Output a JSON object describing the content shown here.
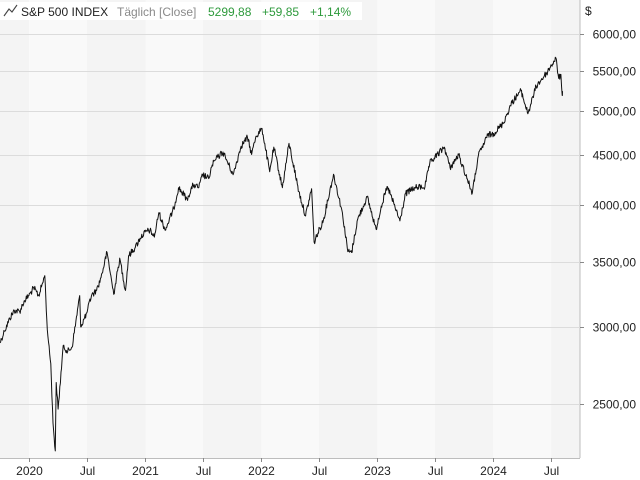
{
  "header": {
    "instrument": "S&P 500 INDEX",
    "period": "Täglich [Close]",
    "last": "5299,88",
    "change": "+59,85",
    "change_pct": "+1,14%"
  },
  "colors": {
    "plot_band_a": "#f4f4f4",
    "plot_band_b": "#f9f9f9",
    "grid": "#dcdcdc",
    "line": "#111111",
    "positive": "#2e9a3c",
    "muted": "#8a8a8a"
  },
  "chart_data": {
    "type": "line",
    "title": "S&P 500 INDEX",
    "xlabel": "",
    "ylabel": "$",
    "y_scale": "log",
    "ylim": [
      2200,
      6500
    ],
    "xlim": [
      "2019-10-01",
      "2024-09-30"
    ],
    "grid": true,
    "legend": "none",
    "y_ticks": [
      {
        "value": 2500,
        "label": "2500,00"
      },
      {
        "value": 3000,
        "label": "3000,00"
      },
      {
        "value": 3500,
        "label": "3500,00"
      },
      {
        "value": 4000,
        "label": "4000,00"
      },
      {
        "value": 4500,
        "label": "4500,00"
      },
      {
        "value": 5000,
        "label": "5000,00"
      },
      {
        "value": 5500,
        "label": "5500,00"
      },
      {
        "value": 6000,
        "label": "6000,00"
      }
    ],
    "x_ticks": [
      {
        "date": "2020-01-01",
        "label": "2020"
      },
      {
        "date": "2020-07-01",
        "label": "Jul"
      },
      {
        "date": "2021-01-01",
        "label": "2021"
      },
      {
        "date": "2021-07-01",
        "label": "Jul"
      },
      {
        "date": "2022-01-01",
        "label": "2022"
      },
      {
        "date": "2022-07-01",
        "label": "Jul"
      },
      {
        "date": "2023-01-01",
        "label": "2023"
      },
      {
        "date": "2023-07-01",
        "label": "Jul"
      },
      {
        "date": "2024-01-01",
        "label": "2024"
      },
      {
        "date": "2024-07-01",
        "label": "Jul"
      }
    ],
    "series": [
      {
        "points": [
          [
            "2019-10-01",
            2890
          ],
          [
            "2019-10-15",
            2970
          ],
          [
            "2019-11-01",
            3060
          ],
          [
            "2019-11-15",
            3120
          ],
          [
            "2019-12-02",
            3110
          ],
          [
            "2019-12-16",
            3190
          ],
          [
            "2019-12-31",
            3230
          ],
          [
            "2020-01-15",
            3290
          ],
          [
            "2020-01-31",
            3230
          ],
          [
            "2020-02-19",
            3386
          ],
          [
            "2020-02-27",
            2980
          ],
          [
            "2020-03-09",
            2750
          ],
          [
            "2020-03-16",
            2390
          ],
          [
            "2020-03-23",
            2237
          ],
          [
            "2020-03-26",
            2630
          ],
          [
            "2020-04-01",
            2470
          ],
          [
            "2020-04-17",
            2870
          ],
          [
            "2020-05-01",
            2830
          ],
          [
            "2020-05-15",
            2860
          ],
          [
            "2020-06-08",
            3230
          ],
          [
            "2020-06-11",
            3000
          ],
          [
            "2020-06-30",
            3100
          ],
          [
            "2020-07-15",
            3230
          ],
          [
            "2020-07-31",
            3270
          ],
          [
            "2020-08-14",
            3370
          ],
          [
            "2020-09-02",
            3580
          ],
          [
            "2020-09-23",
            3240
          ],
          [
            "2020-10-12",
            3530
          ],
          [
            "2020-10-30",
            3270
          ],
          [
            "2020-11-09",
            3550
          ],
          [
            "2020-11-30",
            3620
          ],
          [
            "2020-12-15",
            3700
          ],
          [
            "2020-12-31",
            3756
          ],
          [
            "2021-01-15",
            3770
          ],
          [
            "2021-01-29",
            3710
          ],
          [
            "2021-02-12",
            3930
          ],
          [
            "2021-03-04",
            3770
          ],
          [
            "2021-03-31",
            3970
          ],
          [
            "2021-04-15",
            4170
          ],
          [
            "2021-05-12",
            4060
          ],
          [
            "2021-05-31",
            4200
          ],
          [
            "2021-06-18",
            4170
          ],
          [
            "2021-06-30",
            4300
          ],
          [
            "2021-07-19",
            4260
          ],
          [
            "2021-07-30",
            4400
          ],
          [
            "2021-08-16",
            4480
          ],
          [
            "2021-09-02",
            4537
          ],
          [
            "2021-10-04",
            4300
          ],
          [
            "2021-10-29",
            4600
          ],
          [
            "2021-11-18",
            4700
          ],
          [
            "2021-12-01",
            4510
          ],
          [
            "2021-12-15",
            4710
          ],
          [
            "2022-01-03",
            4797
          ],
          [
            "2022-01-27",
            4330
          ],
          [
            "2022-02-09",
            4590
          ],
          [
            "2022-03-08",
            4170
          ],
          [
            "2022-03-29",
            4630
          ],
          [
            "2022-04-29",
            4130
          ],
          [
            "2022-05-20",
            3900
          ],
          [
            "2022-06-08",
            4160
          ],
          [
            "2022-06-16",
            3666
          ],
          [
            "2022-07-15",
            3860
          ],
          [
            "2022-08-16",
            4305
          ],
          [
            "2022-09-13",
            3930
          ],
          [
            "2022-09-30",
            3585
          ],
          [
            "2022-10-12",
            3577
          ],
          [
            "2022-10-31",
            3870
          ],
          [
            "2022-11-30",
            4080
          ],
          [
            "2022-12-28",
            3780
          ],
          [
            "2023-01-13",
            3990
          ],
          [
            "2023-02-02",
            4180
          ],
          [
            "2023-03-13",
            3855
          ],
          [
            "2023-03-31",
            4110
          ],
          [
            "2023-04-28",
            4170
          ],
          [
            "2023-05-31",
            4180
          ],
          [
            "2023-06-15",
            4420
          ],
          [
            "2023-07-31",
            4589
          ],
          [
            "2023-08-18",
            4370
          ],
          [
            "2023-09-14",
            4505
          ],
          [
            "2023-10-27",
            4117
          ],
          [
            "2023-11-15",
            4500
          ],
          [
            "2023-12-15",
            4720
          ],
          [
            "2024-01-02",
            4740
          ],
          [
            "2024-01-31",
            4850
          ],
          [
            "2024-02-29",
            5100
          ],
          [
            "2024-03-28",
            5250
          ],
          [
            "2024-04-19",
            4967
          ],
          [
            "2024-05-15",
            5300
          ],
          [
            "2024-06-17",
            5470
          ],
          [
            "2024-07-16",
            5667
          ],
          [
            "2024-07-25",
            5400
          ],
          [
            "2024-08-01",
            5450
          ],
          [
            "2024-08-05",
            5186
          ],
          [
            "2024-08-06",
            5240
          ]
        ]
      }
    ]
  }
}
